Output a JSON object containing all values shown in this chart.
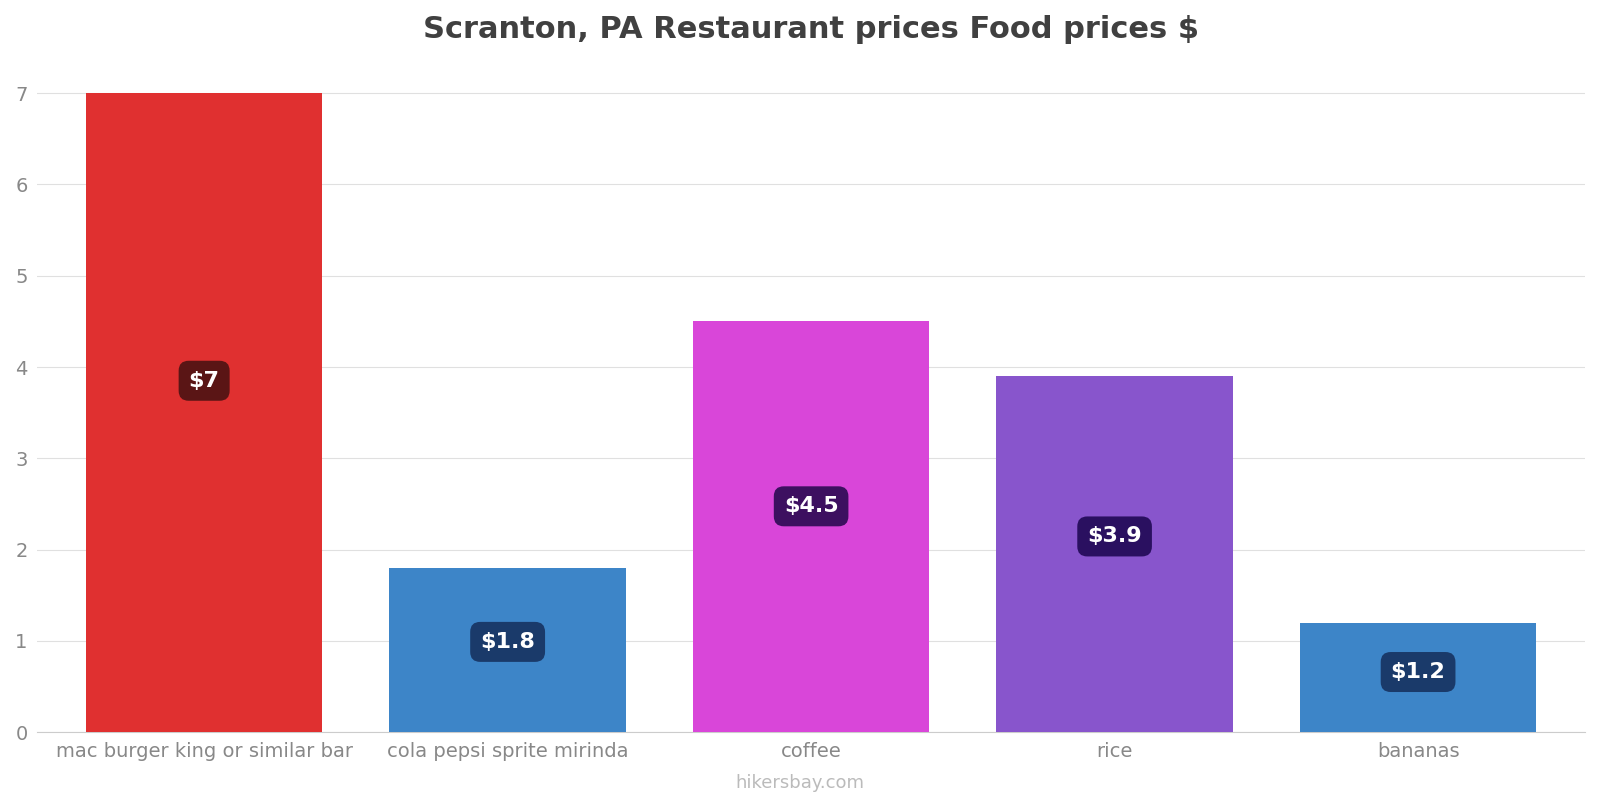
{
  "title": "Scranton, PA Restaurant prices Food prices $",
  "categories": [
    "mac burger king or similar bar",
    "cola pepsi sprite mirinda",
    "coffee",
    "rice",
    "bananas"
  ],
  "values": [
    7.0,
    1.8,
    4.5,
    3.9,
    1.2
  ],
  "bar_colors": [
    "#e03030",
    "#3d85c8",
    "#d946d9",
    "#8855cc",
    "#3d85c8"
  ],
  "label_texts": [
    "$7",
    "$1.8",
    "$4.5",
    "$3.9",
    "$1.2"
  ],
  "label_bg_colors": [
    "#5a1515",
    "#1a3a6a",
    "#3d1060",
    "#2a1060",
    "#1a3a6a"
  ],
  "ylim": [
    0,
    7.3
  ],
  "yticks": [
    0,
    1,
    2,
    3,
    4,
    5,
    6,
    7
  ],
  "watermark": "hikersbay.com",
  "background_color": "#ffffff",
  "title_fontsize": 22,
  "tick_fontsize": 14,
  "label_fontsize": 16,
  "bar_width": 0.78,
  "xlim_left": -0.55,
  "xlim_right": 4.55
}
